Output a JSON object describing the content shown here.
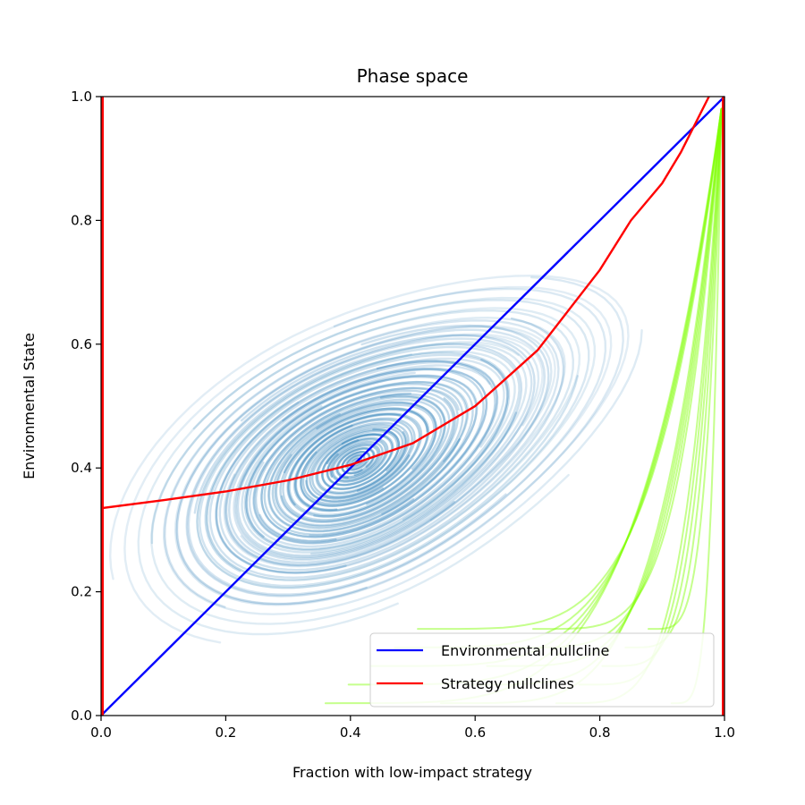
{
  "chart_data": {
    "type": "line",
    "title": "Phase space",
    "xlabel": "Fraction with low-impact strategy",
    "ylabel": "Environmental State",
    "xlim": [
      0.0,
      1.0
    ],
    "ylim": [
      0.0,
      1.0
    ],
    "xticks": [
      "0.0",
      "0.2",
      "0.4",
      "0.6",
      "0.8",
      "1.0"
    ],
    "yticks": [
      "0.0",
      "0.2",
      "0.4",
      "0.6",
      "0.8",
      "1.0"
    ],
    "grid": false,
    "legend_position": "lower-right",
    "series": [
      {
        "name": "Environmental nullcline",
        "color": "#0000ff",
        "x": [
          0.0,
          1.0
        ],
        "y": [
          0.0,
          1.0
        ]
      },
      {
        "name": "Strategy nullclines",
        "color": "#ff0000",
        "x": [
          0.0,
          0.1,
          0.2,
          0.3,
          0.4,
          0.5,
          0.6,
          0.7,
          0.8,
          0.85,
          0.9,
          0.93,
          0.96,
          0.975
        ],
        "y": [
          0.335,
          0.348,
          0.362,
          0.38,
          0.405,
          0.44,
          0.5,
          0.59,
          0.72,
          0.8,
          0.86,
          0.91,
          0.97,
          1.0
        ],
        "vertical_lines_x": [
          0.0,
          1.0
        ]
      }
    ],
    "equilibrium": {
      "x": 0.41,
      "y": 0.41
    },
    "trajectory_colors": {
      "orbit": "#1f77b4",
      "escape": "#7fff00"
    }
  }
}
